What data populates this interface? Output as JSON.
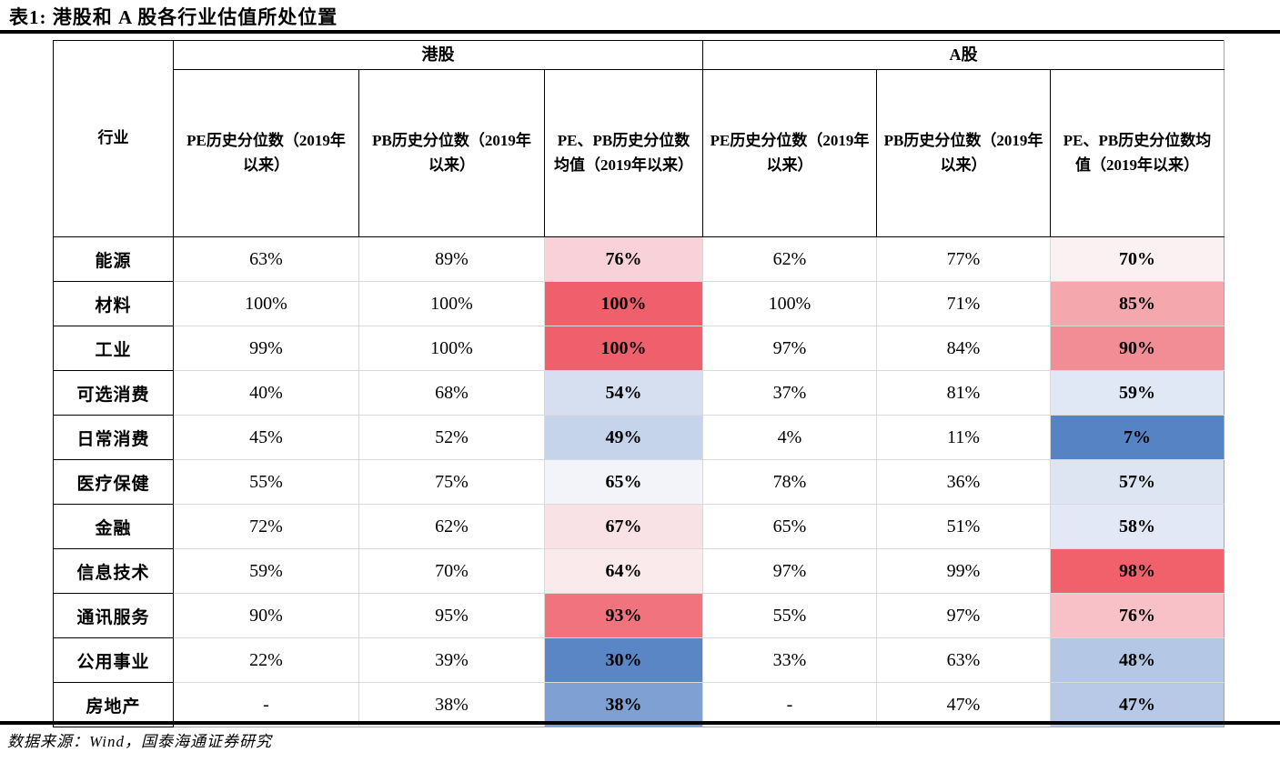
{
  "title": "表1:  港股和 A 股各行业估值所处位置",
  "source": "数据来源：Wind，国泰海通证券研究",
  "table": {
    "industry_header": "行业",
    "groups": [
      {
        "label": "港股"
      },
      {
        "label": "A股"
      }
    ],
    "sub_headers": [
      "PE历史分位数（2019年以来）",
      "PB历史分位数（2019年以来）",
      "PE、PB历史分位数均值（2019年以来）",
      "PE历史分位数（2019年以来）",
      "PB历史分位数（2019年以来）",
      "PE、PB历史分位数均值（2019年以来）"
    ],
    "rows": [
      {
        "industry": "能源",
        "hk_pe": "63%",
        "hk_pb": "89%",
        "hk_avg": "76%",
        "hk_avg_bg": "#F8D1D9",
        "a_pe": "62%",
        "a_pb": "77%",
        "a_avg": "70%",
        "a_avg_bg": "#FBF0F2"
      },
      {
        "industry": "材料",
        "hk_pe": "100%",
        "hk_pb": "100%",
        "hk_avg": "100%",
        "hk_avg_bg": "#F0606C",
        "a_pe": "100%",
        "a_pb": "71%",
        "a_avg": "85%",
        "a_avg_bg": "#F5A7AE"
      },
      {
        "industry": "工业",
        "hk_pe": "99%",
        "hk_pb": "100%",
        "hk_avg": "100%",
        "hk_avg_bg": "#F0606C",
        "a_pe": "97%",
        "a_pb": "84%",
        "a_avg": "90%",
        "a_avg_bg": "#F28D96"
      },
      {
        "industry": "可选消费",
        "hk_pe": "40%",
        "hk_pb": "68%",
        "hk_avg": "54%",
        "hk_avg_bg": "#D6DFF0",
        "a_pe": "37%",
        "a_pb": "81%",
        "a_avg": "59%",
        "a_avg_bg": "#E1E8F5"
      },
      {
        "industry": "日常消费",
        "hk_pe": "45%",
        "hk_pb": "52%",
        "hk_avg": "49%",
        "hk_avg_bg": "#C6D4EB",
        "a_pe": "4%",
        "a_pb": "11%",
        "a_avg": "7%",
        "a_avg_bg": "#5583C3"
      },
      {
        "industry": "医疗保健",
        "hk_pe": "55%",
        "hk_pb": "75%",
        "hk_avg": "65%",
        "hk_avg_bg": "#F2F4F9",
        "a_pe": "78%",
        "a_pb": "36%",
        "a_avg": "57%",
        "a_avg_bg": "#DDE5F2"
      },
      {
        "industry": "金融",
        "hk_pe": "72%",
        "hk_pb": "62%",
        "hk_avg": "67%",
        "hk_avg_bg": "#F9E2E6",
        "a_pe": "65%",
        "a_pb": "51%",
        "a_avg": "58%",
        "a_avg_bg": "#E2E8F5"
      },
      {
        "industry": "信息技术",
        "hk_pe": "59%",
        "hk_pb": "70%",
        "hk_avg": "64%",
        "hk_avg_bg": "#FBEAEC",
        "a_pe": "97%",
        "a_pb": "99%",
        "a_avg": "98%",
        "a_avg_bg": "#F0616C"
      },
      {
        "industry": "通讯服务",
        "hk_pe": "90%",
        "hk_pb": "95%",
        "hk_avg": "93%",
        "hk_avg_bg": "#F1737E",
        "a_pe": "55%",
        "a_pb": "97%",
        "a_avg": "76%",
        "a_avg_bg": "#F8C1C7"
      },
      {
        "industry": "公用事业",
        "hk_pe": "22%",
        "hk_pb": "39%",
        "hk_avg": "30%",
        "hk_avg_bg": "#5A86C5",
        "a_pe": "33%",
        "a_pb": "63%",
        "a_avg": "48%",
        "a_avg_bg": "#B4C7E4"
      },
      {
        "industry": "房地产",
        "hk_pe": "-",
        "hk_pb": "38%",
        "hk_avg": "38%",
        "hk_avg_bg": "#7FA0D2",
        "a_pe": "-",
        "a_pb": "47%",
        "a_avg": "47%",
        "a_avg_bg": "#B7C9E6"
      }
    ],
    "colors": {
      "high_red": "#F0606C",
      "low_blue": "#5583C3",
      "grid_gray": "#D9D9D9",
      "border_black": "#000000"
    }
  }
}
